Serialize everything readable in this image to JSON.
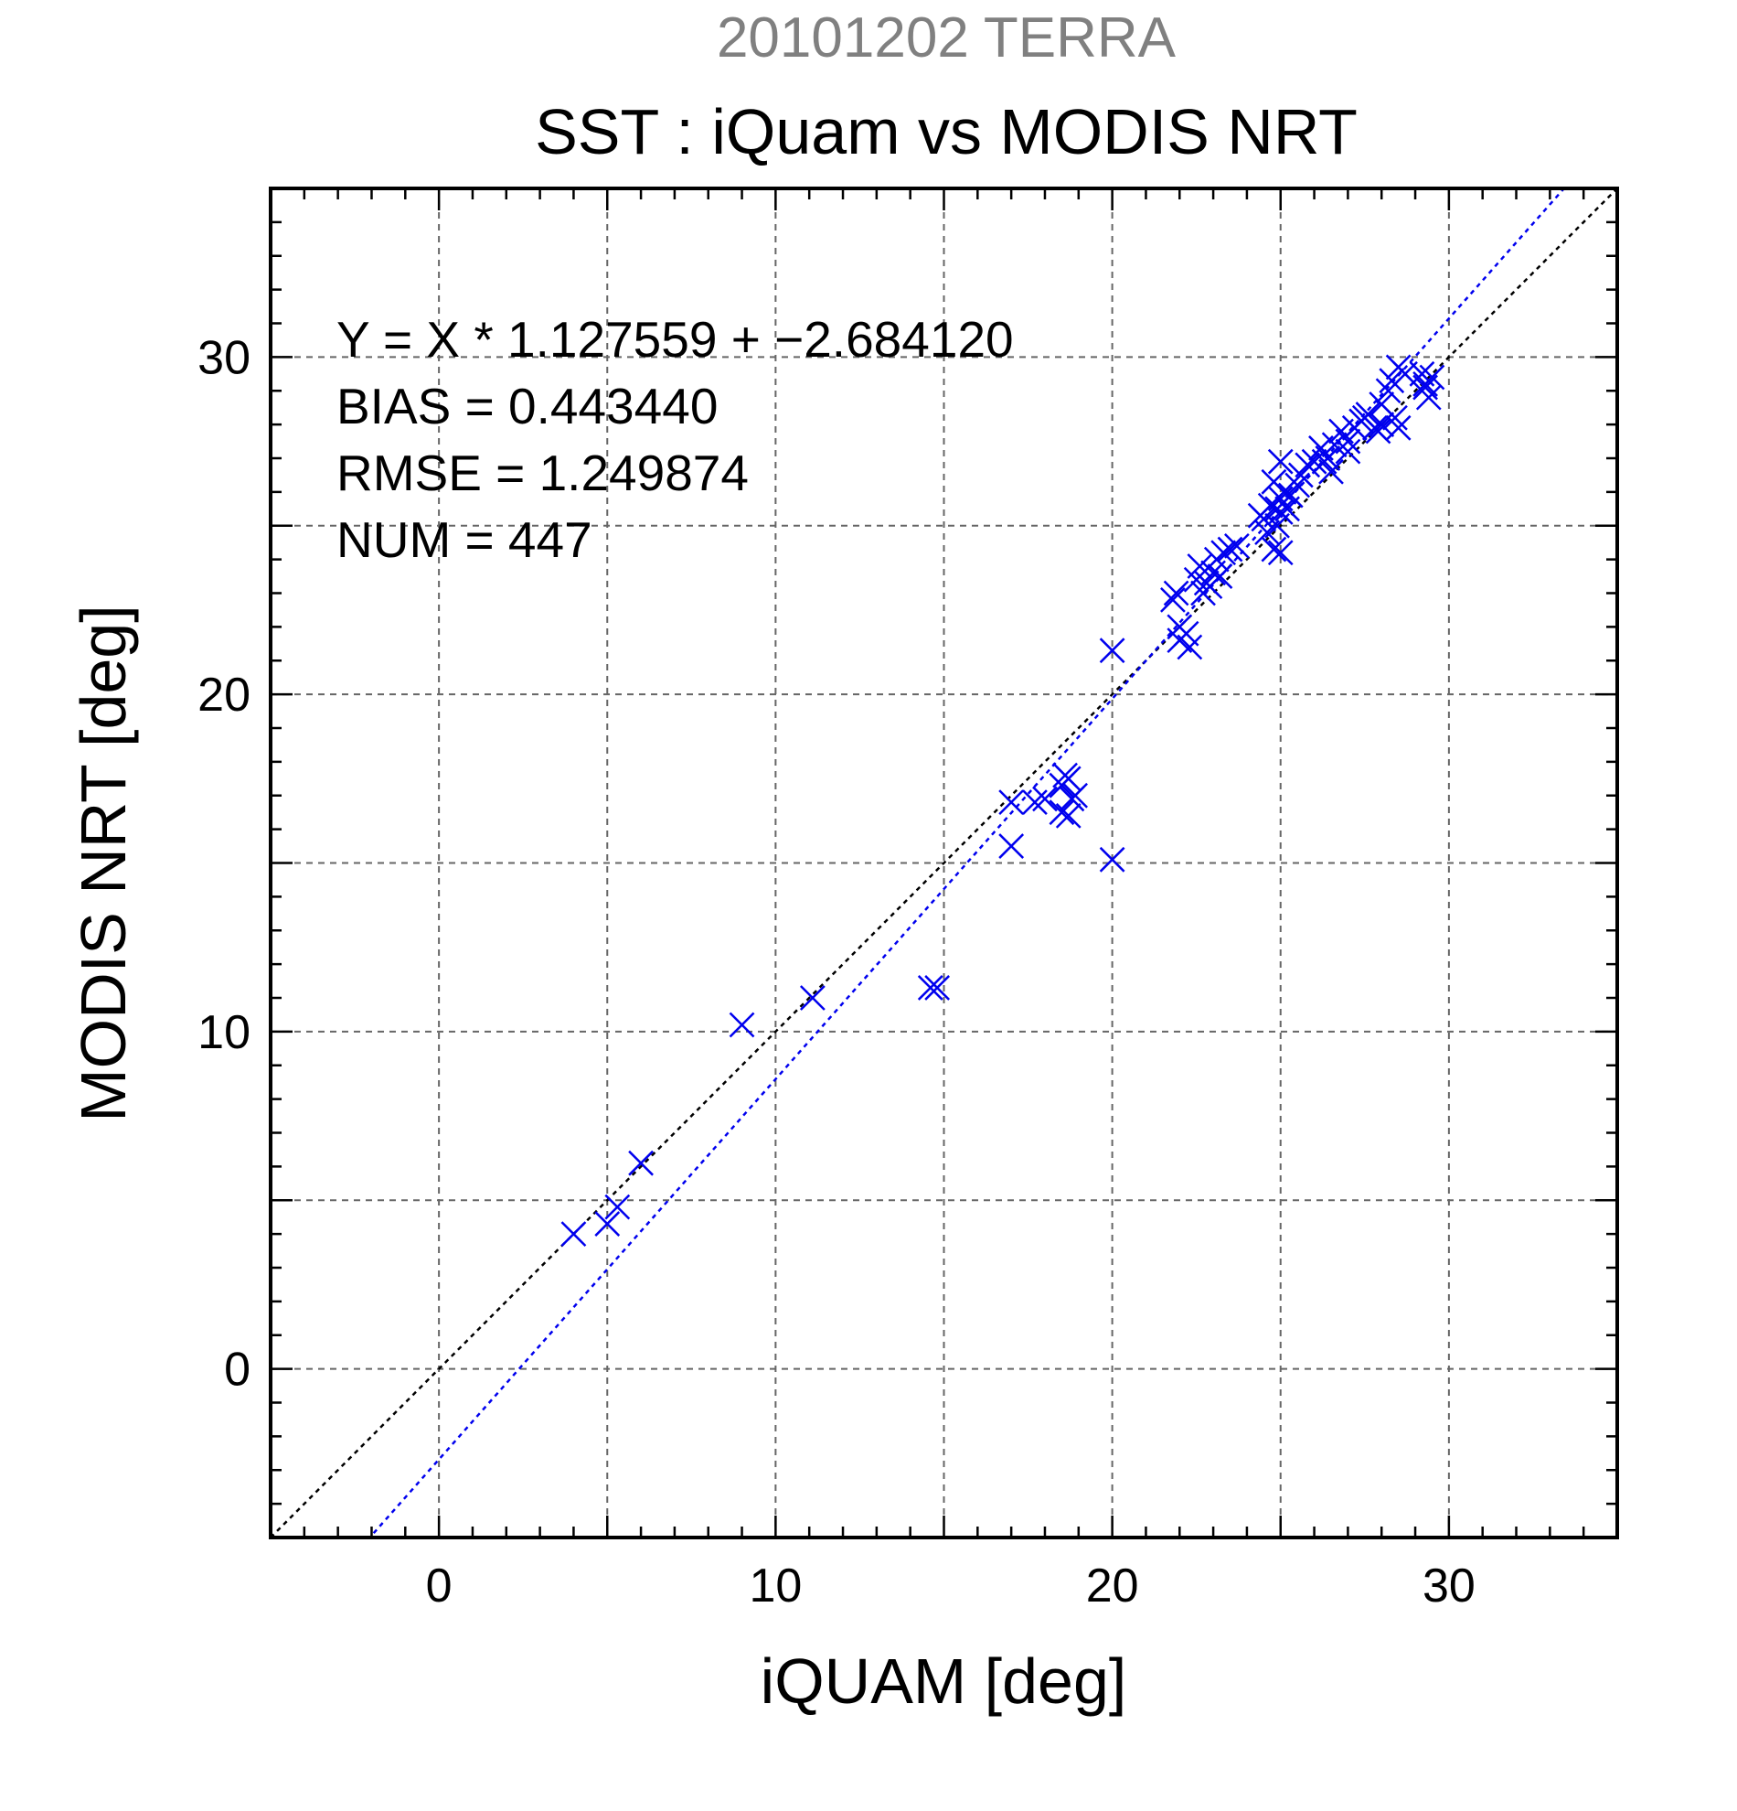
{
  "chart_data": {
    "type": "scatter",
    "title_top": "20101202 TERRA",
    "title": "SST : iQuam vs MODIS NRT",
    "xlabel": "iQUAM [deg]",
    "ylabel": "MODIS NRT [deg]",
    "xlim": [
      -5,
      35
    ],
    "ylim": [
      -5,
      35
    ],
    "major_ticks": [
      0,
      10,
      20,
      30
    ],
    "grid_step": 5,
    "minor_step": 1,
    "grid": true,
    "stats": {
      "equation": "Y = X * 1.127559 + −2.684120",
      "bias": "BIAS = 0.443440",
      "rmse": "RMSE = 1.249874",
      "num": "NUM = 447"
    },
    "fit": {
      "slope": 1.127559,
      "intercept": -2.68412
    },
    "colors": {
      "points": "#0000ee",
      "fit_line": "#0000ee",
      "identity_line": "#000000",
      "title_top": "#808080"
    },
    "series": [
      {
        "marker": "x",
        "x": [
          4.0,
          5.0,
          5.3,
          6.0,
          9.0,
          11.1,
          14.6,
          14.8,
          17.0,
          17.0,
          17.7,
          18.0,
          18.5,
          18.7,
          18.8,
          18.5,
          18.6,
          18.9,
          18.7,
          20.0,
          20.0,
          21.8,
          22.0,
          22.0,
          22.2,
          22.3,
          21.9,
          22.5,
          22.6,
          22.8,
          23.0,
          22.7,
          23.1,
          23.3,
          23.5,
          23.7,
          23.2,
          22.9,
          24.5,
          24.7,
          24.9,
          25.0,
          25.1,
          24.6,
          24.8,
          25.2,
          24.4,
          24.8,
          25.0,
          25.3,
          25.5,
          24.9,
          25.0,
          25.6,
          25.8,
          26.0,
          26.2,
          26.4,
          26.6,
          26.8,
          27.0,
          26.5,
          27.2,
          27.4,
          27.6,
          27.8,
          28.0,
          27.5,
          28.2,
          28.3,
          28.5,
          28.7,
          28.0,
          27.9,
          28.4,
          29.2,
          29.3,
          29.4,
          29.5,
          29.3,
          28.5,
          27.0,
          26.3,
          25.0
        ],
        "y": [
          4.0,
          4.3,
          4.8,
          6.1,
          10.2,
          11.0,
          11.3,
          11.3,
          16.8,
          15.5,
          16.8,
          16.9,
          16.5,
          17.5,
          16.9,
          17.3,
          17.6,
          17.0,
          16.4,
          21.3,
          15.1,
          22.8,
          22.0,
          21.6,
          21.8,
          21.4,
          23.0,
          23.4,
          23.8,
          23.3,
          23.6,
          23.0,
          24.0,
          24.2,
          24.3,
          24.4,
          23.5,
          23.2,
          25.2,
          25.6,
          25.0,
          25.8,
          26.0,
          24.8,
          26.3,
          25.5,
          25.3,
          24.3,
          26.9,
          25.9,
          26.2,
          25.5,
          24.2,
          26.5,
          26.8,
          26.9,
          27.3,
          27.0,
          27.4,
          27.8,
          27.5,
          26.6,
          27.9,
          28.1,
          28.3,
          27.9,
          28.6,
          28.2,
          29.0,
          29.3,
          29.7,
          29.5,
          28.0,
          27.8,
          28.2,
          29.5,
          29.1,
          28.8,
          29.4,
          29.2,
          27.9,
          27.2,
          26.9,
          25.4
        ]
      }
    ]
  }
}
